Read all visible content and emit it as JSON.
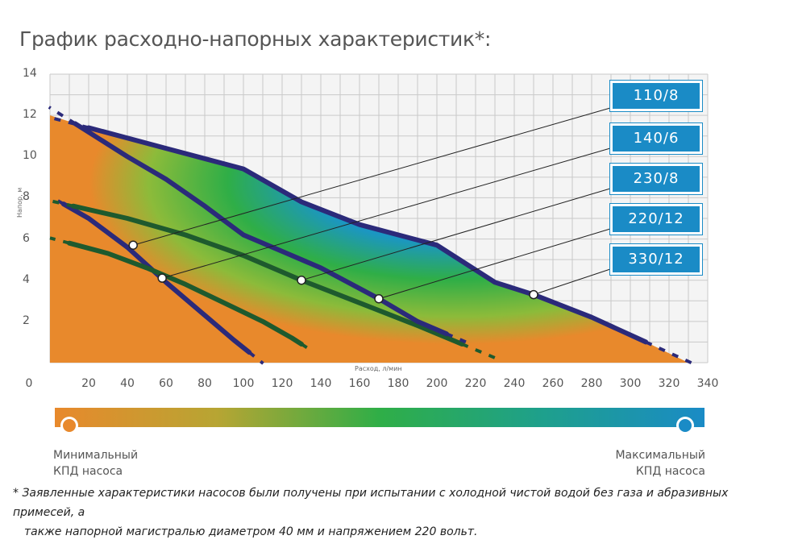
{
  "title": "График расходно-напорных характеристик*:",
  "chart_data": {
    "type": "line",
    "xlabel": "Расход, л/мин",
    "ylabel": "Напор, м",
    "xlim": [
      0,
      340
    ],
    "ylim": [
      0,
      14
    ],
    "x_ticks": [
      "0",
      "20",
      "40",
      "60",
      "80",
      "100",
      "120",
      "140",
      "160",
      "180",
      "200",
      "220",
      "240",
      "260",
      "280",
      "300",
      "320",
      "340"
    ],
    "y_ticks": [
      "2",
      "4",
      "6",
      "8",
      "10",
      "12",
      "14"
    ],
    "grid": true,
    "series": [
      {
        "name": "110/8",
        "x": [
          7,
          20,
          40,
          60,
          80,
          95,
          103
        ],
        "y": [
          7.7,
          7.0,
          5.6,
          3.9,
          2.3,
          1.1,
          0.5
        ]
      },
      {
        "name": "140/6",
        "x": [
          10,
          30,
          50,
          70,
          90,
          110,
          125,
          130
        ],
        "y": [
          5.8,
          5.3,
          4.6,
          3.8,
          2.9,
          2.0,
          1.2,
          0.9
        ]
      },
      {
        "name": "230/8",
        "x": [
          12,
          40,
          70,
          100,
          130,
          160,
          190,
          213
        ],
        "y": [
          7.6,
          7.0,
          6.2,
          5.2,
          4.0,
          2.9,
          1.8,
          0.9
        ]
      },
      {
        "name": "220/12",
        "x": [
          13,
          40,
          60,
          80,
          100,
          120,
          140,
          170,
          190,
          205
        ],
        "y": [
          11.6,
          10.0,
          8.9,
          7.6,
          6.2,
          5.4,
          4.6,
          3.1,
          2.0,
          1.4
        ]
      },
      {
        "name": "330/12",
        "x": [
          20,
          60,
          100,
          130,
          160,
          200,
          230,
          250,
          280,
          308
        ],
        "y": [
          11.4,
          10.4,
          9.4,
          7.8,
          6.7,
          5.7,
          3.9,
          3.3,
          2.2,
          1.0
        ]
      }
    ],
    "callouts": [
      {
        "label": "110/8",
        "x": 43,
        "y": 5.7
      },
      {
        "label": "140/6",
        "x": 58,
        "y": 4.1
      },
      {
        "label": "230/8",
        "x": 130,
        "y": 4.0
      },
      {
        "label": "220/12",
        "x": 170,
        "y": 3.1
      },
      {
        "label": "330/12",
        "x": 250,
        "y": 3.3
      }
    ],
    "legend": {
      "min_label": "Минимальный КПД насоса",
      "max_label": "Максимальный КПД насоса"
    }
  },
  "models": [
    "110/8",
    "140/6",
    "230/8",
    "220/12",
    "330/12"
  ],
  "kpd": {
    "min_line1": "Минимальный",
    "min_line2": "КПД насоса",
    "max_line1": "Максимальный",
    "max_line2": "КПД насоса"
  },
  "footnote": {
    "line1": "* Заявленные характеристики насосов были получены при испытании с холодной чистой водой без газа и абразивных примесей, а",
    "line2": "также напорной магистралью диаметром 40 мм и напряжением 220 вольт."
  },
  "colors": {
    "low_efficiency": "#e8892c",
    "mid_efficiency": "#2fae47",
    "high_efficiency": "#1a8bc6",
    "curve_dark_blue": "#2b2a7a",
    "curve_dark_green": "#1e5a2e",
    "box_blue": "#1a8bc6"
  }
}
